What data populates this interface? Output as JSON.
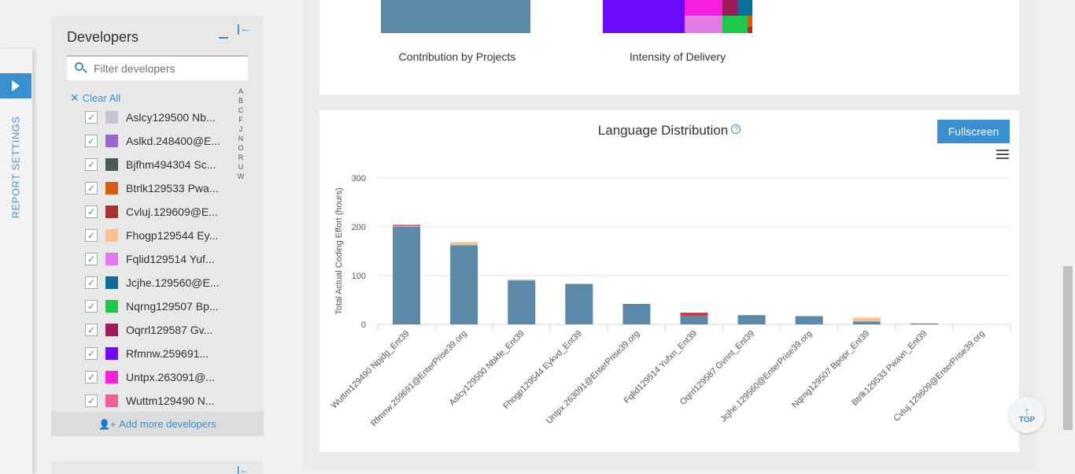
{
  "report_settings": {
    "label": "REPORT SETTINGS"
  },
  "developers_panel": {
    "title": "Developers",
    "search_placeholder": "Filter developers",
    "clear_all_label": "Clear All",
    "alphabet": [
      "A",
      "B",
      "C",
      "F",
      "J",
      "N",
      "O",
      "R",
      "U",
      "W"
    ],
    "items": [
      {
        "name": "Aslcy129500 Nb...",
        "color": "#c5c5d1"
      },
      {
        "name": "Aslkd.248400@E...",
        "color": "#9966cc"
      },
      {
        "name": "Bjfhm494304 Sc...",
        "color": "#4a5a55"
      },
      {
        "name": "Btrlk129533 Pwa...",
        "color": "#d25f0e"
      },
      {
        "name": "Cvluj.129609@E...",
        "color": "#a83232"
      },
      {
        "name": "Fhogp129544 Ey...",
        "color": "#ffc090"
      },
      {
        "name": "Fqlid129514 Yuf...",
        "color": "#e47ae8"
      },
      {
        "name": "Jcjhe.129560@E...",
        "color": "#0a6e9b"
      },
      {
        "name": "Nqrng129507 Bp...",
        "color": "#1ec84a"
      },
      {
        "name": "Oqrrl129587 Gv...",
        "color": "#a01a5e"
      },
      {
        "name": "Rfmnw.259691...",
        "color": "#6a0aff"
      },
      {
        "name": "Untpx.263091@...",
        "color": "#f81ee0"
      },
      {
        "name": "Wuttm129490 N...",
        "color": "#f0609a"
      }
    ],
    "add_more_label": "Add more developers"
  },
  "top_charts": {
    "projects_label": "Contribution by Projects",
    "intensity_label": "Intensity of Delivery",
    "projects_color": "#5d89a9"
  },
  "language_distribution": {
    "title": "Language Distribution",
    "help_icon": "?",
    "fullscreen_label": "Fullscreen"
  },
  "top_button": {
    "label": "TOP"
  },
  "chart_data": {
    "type": "bar",
    "title": "Language Distribution",
    "ylabel": "Total Actual Coding Effort (hours)",
    "xlabel": "",
    "ylim": [
      0,
      300
    ],
    "yticks": [
      0,
      100,
      200,
      300
    ],
    "grid": true,
    "categories": [
      "Wuttm129490 Npjdg_Ent39",
      "Rfmnw.259691@EnterPrise39.org",
      "Aslcy129500 Nbkfe_Ent39",
      "Fhogp129544 Eykvd_Ent39",
      "Untpx.263091@EnterPrise39.org",
      "Fqlid129514 Yufxn_Ent39",
      "Oqrrl129587 Gvnnt_Ent39",
      "Jcjhe.129560@EnterPrise39.org",
      "Nqrng129507 Bpopr_Ent39",
      "Btrlk129533 Pwavn_Ent39",
      "Cvluj.129609@EnterPrise39.org"
    ],
    "series": [
      {
        "color": "#5d89a9",
        "values": [
          200,
          162,
          90,
          83,
          42,
          18,
          19,
          17,
          6,
          2,
          0
        ]
      },
      {
        "color": "#c6c6c6",
        "values": [
          2,
          2,
          2,
          0,
          0,
          0,
          0,
          0,
          0,
          0,
          0
        ]
      },
      {
        "color": "#ffc090",
        "values": [
          0,
          5,
          0,
          0,
          0,
          0,
          0,
          0,
          8,
          0,
          0
        ]
      },
      {
        "color": "#d0303a",
        "values": [
          2,
          0,
          0,
          0,
          0,
          6,
          0,
          0,
          0,
          0,
          0
        ]
      }
    ]
  }
}
